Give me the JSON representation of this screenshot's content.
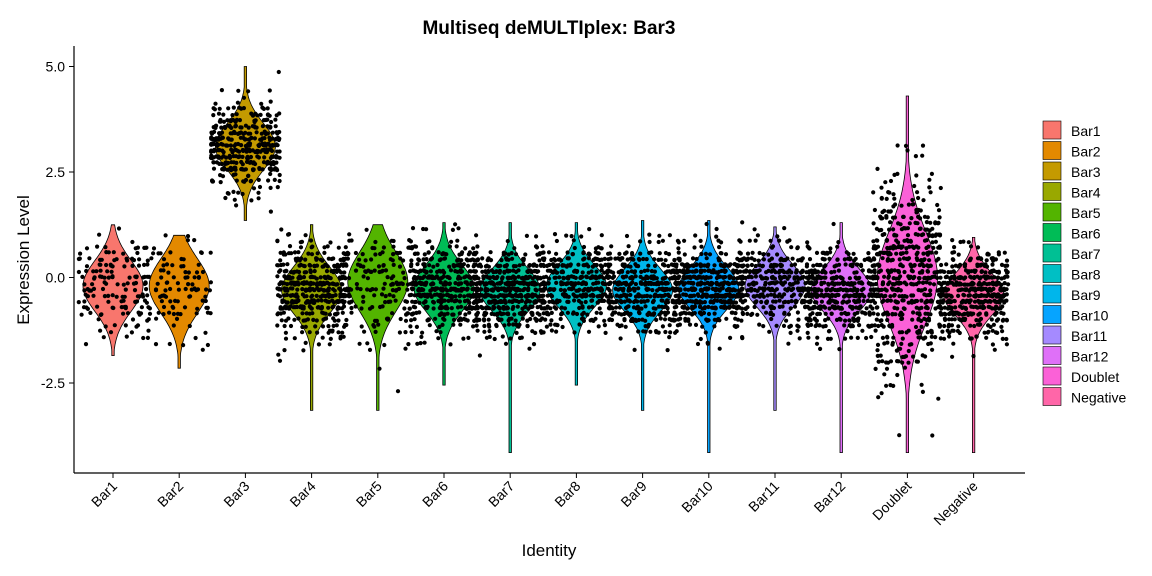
{
  "chart_data": {
    "type": "violin",
    "title": "Multiseq deMULTIplex: Bar3",
    "xlabel": "Identity",
    "ylabel": "Expression Level",
    "ylim": [
      -4.6,
      5.45
    ],
    "yticks": [
      -2.5,
      0.0,
      2.5,
      5.0
    ],
    "ytick_labels": [
      "-2.5",
      "0.0",
      "2.5",
      "5.0"
    ],
    "jitter_points": true,
    "legend_position": "right",
    "categories": [
      "Bar1",
      "Bar2",
      "Bar3",
      "Bar4",
      "Bar5",
      "Bar6",
      "Bar7",
      "Bar8",
      "Bar9",
      "Bar10",
      "Bar11",
      "Bar12",
      "Doublet",
      "Negative"
    ],
    "series": [
      {
        "name": "Bar1",
        "color": "#F8766D",
        "min": -1.85,
        "max": 1.25,
        "median": -0.2,
        "spread": 0.6,
        "n": 140
      },
      {
        "name": "Bar2",
        "color": "#E38900",
        "min": -2.15,
        "max": 1.0,
        "median": -0.2,
        "spread": 0.65,
        "n": 110
      },
      {
        "name": "Bar3",
        "color": "#C49A00",
        "min": 1.35,
        "max": 5.0,
        "median": 3.1,
        "spread": 0.55,
        "n": 380
      },
      {
        "name": "Bar4",
        "color": "#99A800",
        "min": -3.15,
        "max": 1.25,
        "median": -0.3,
        "spread": 0.55,
        "n": 420
      },
      {
        "name": "Bar5",
        "color": "#53B400",
        "min": -3.15,
        "max": 1.25,
        "median": -0.1,
        "spread": 0.7,
        "n": 160
      },
      {
        "name": "Bar6",
        "color": "#00BC56",
        "min": -2.55,
        "max": 1.3,
        "median": -0.25,
        "spread": 0.55,
        "n": 420
      },
      {
        "name": "Bar7",
        "color": "#00C094",
        "min": -4.15,
        "max": 1.3,
        "median": -0.3,
        "spread": 0.5,
        "n": 480
      },
      {
        "name": "Bar8",
        "color": "#00BFC4",
        "min": -2.55,
        "max": 1.3,
        "median": -0.2,
        "spread": 0.5,
        "n": 340
      },
      {
        "name": "Bar9",
        "color": "#00B6EB",
        "min": -3.15,
        "max": 1.35,
        "median": -0.3,
        "spread": 0.5,
        "n": 380
      },
      {
        "name": "Bar10",
        "color": "#06A4FF",
        "min": -4.15,
        "max": 1.35,
        "median": -0.25,
        "spread": 0.5,
        "n": 480
      },
      {
        "name": "Bar11",
        "color": "#A58AFF",
        "min": -3.15,
        "max": 1.2,
        "median": -0.2,
        "spread": 0.5,
        "n": 320
      },
      {
        "name": "Bar12",
        "color": "#DF70F8",
        "min": -4.15,
        "max": 1.3,
        "median": -0.3,
        "spread": 0.5,
        "n": 420
      },
      {
        "name": "Doublet",
        "color": "#FB61D7",
        "min": -4.15,
        "max": 4.3,
        "median": 0.0,
        "spread": 1.1,
        "n": 520
      },
      {
        "name": "Negative",
        "color": "#FF66A8",
        "min": -4.15,
        "max": 0.95,
        "median": -0.4,
        "spread": 0.5,
        "n": 460
      }
    ]
  }
}
